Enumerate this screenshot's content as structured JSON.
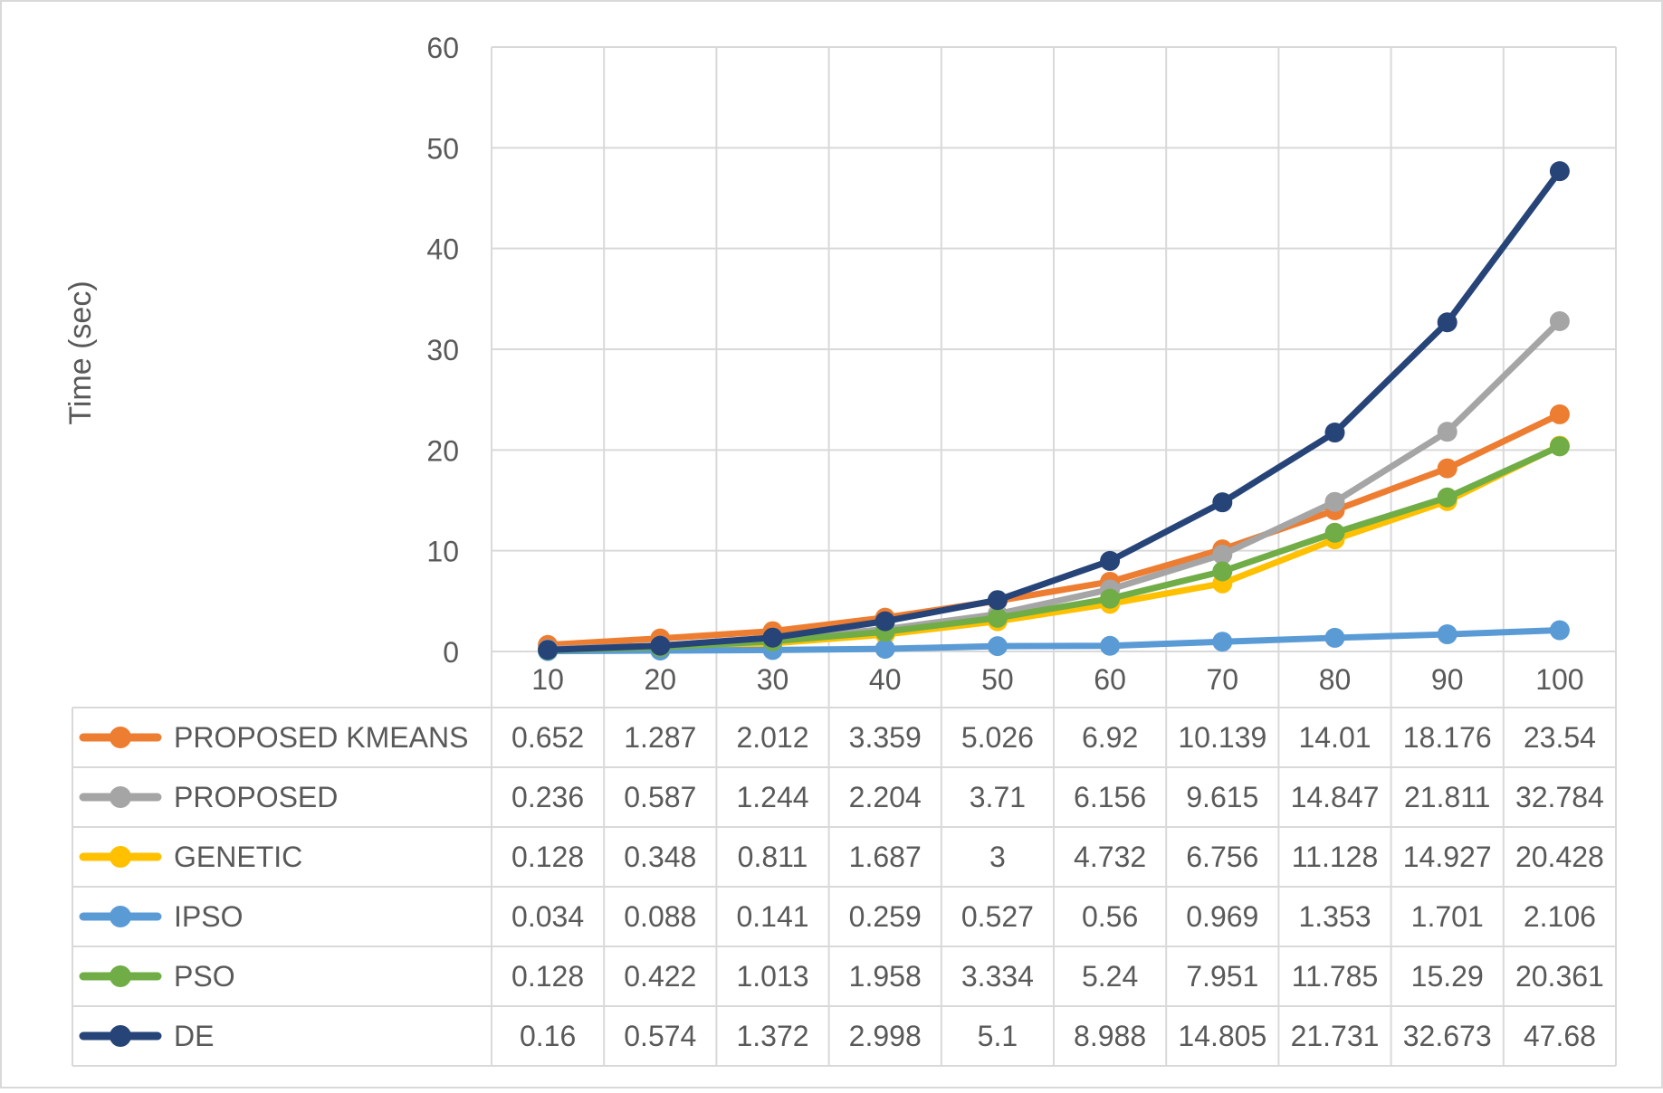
{
  "chart_data": {
    "type": "line",
    "title": "",
    "xlabel": "",
    "ylabel": "Time (sec)",
    "ylim": [
      0,
      60
    ],
    "yticks": [
      0,
      10,
      20,
      30,
      40,
      50,
      60
    ],
    "categories": [
      "10",
      "20",
      "30",
      "40",
      "50",
      "60",
      "70",
      "80",
      "90",
      "100"
    ],
    "grid": true,
    "legend": "data-table",
    "series": [
      {
        "name": "PROPOSED KMEANS",
        "color": "#ED7D31",
        "values": [
          0.652,
          1.287,
          2.012,
          3.359,
          5.026,
          6.92,
          10.139,
          14.01,
          18.176,
          23.54
        ],
        "labels": [
          "0.652",
          "1.287",
          "2.012",
          "3.359",
          "5.026",
          "6.92",
          "10.139",
          "14.01",
          "18.176",
          "23.54"
        ]
      },
      {
        "name": "PROPOSED",
        "color": "#A5A5A5",
        "values": [
          0.236,
          0.587,
          1.244,
          2.204,
          3.71,
          6.156,
          9.615,
          14.847,
          21.811,
          32.784
        ],
        "labels": [
          "0.236",
          "0.587",
          "1.244",
          "2.204",
          "3.71",
          "6.156",
          "9.615",
          "14.847",
          "21.811",
          "32.784"
        ]
      },
      {
        "name": "GENETIC",
        "color": "#FFC000",
        "values": [
          0.128,
          0.348,
          0.811,
          1.687,
          3,
          4.732,
          6.756,
          11.128,
          14.927,
          20.428
        ],
        "labels": [
          "0.128",
          "0.348",
          "0.811",
          "1.687",
          "3",
          "4.732",
          "6.756",
          "11.128",
          "14.927",
          "20.428"
        ]
      },
      {
        "name": "IPSO",
        "color": "#5B9BD5",
        "values": [
          0.034,
          0.088,
          0.141,
          0.259,
          0.527,
          0.56,
          0.969,
          1.353,
          1.701,
          2.106
        ],
        "labels": [
          "0.034",
          "0.088",
          "0.141",
          "0.259",
          "0.527",
          "0.56",
          "0.969",
          "1.353",
          "1.701",
          "2.106"
        ]
      },
      {
        "name": "PSO",
        "color": "#70AD47",
        "values": [
          0.128,
          0.422,
          1.013,
          1.958,
          3.334,
          5.24,
          7.951,
          11.785,
          15.29,
          20.361
        ],
        "labels": [
          "0.128",
          "0.422",
          "1.013",
          "1.958",
          "3.334",
          "5.24",
          "7.951",
          "11.785",
          "15.29",
          "20.361"
        ]
      },
      {
        "name": "DE",
        "color": "#264478",
        "values": [
          0.16,
          0.574,
          1.372,
          2.998,
          5.1,
          8.988,
          14.805,
          21.731,
          32.673,
          47.68
        ],
        "labels": [
          "0.16",
          "0.574",
          "1.372",
          "2.998",
          "5.1",
          "8.988",
          "14.805",
          "21.731",
          "32.673",
          "47.68"
        ]
      }
    ]
  }
}
